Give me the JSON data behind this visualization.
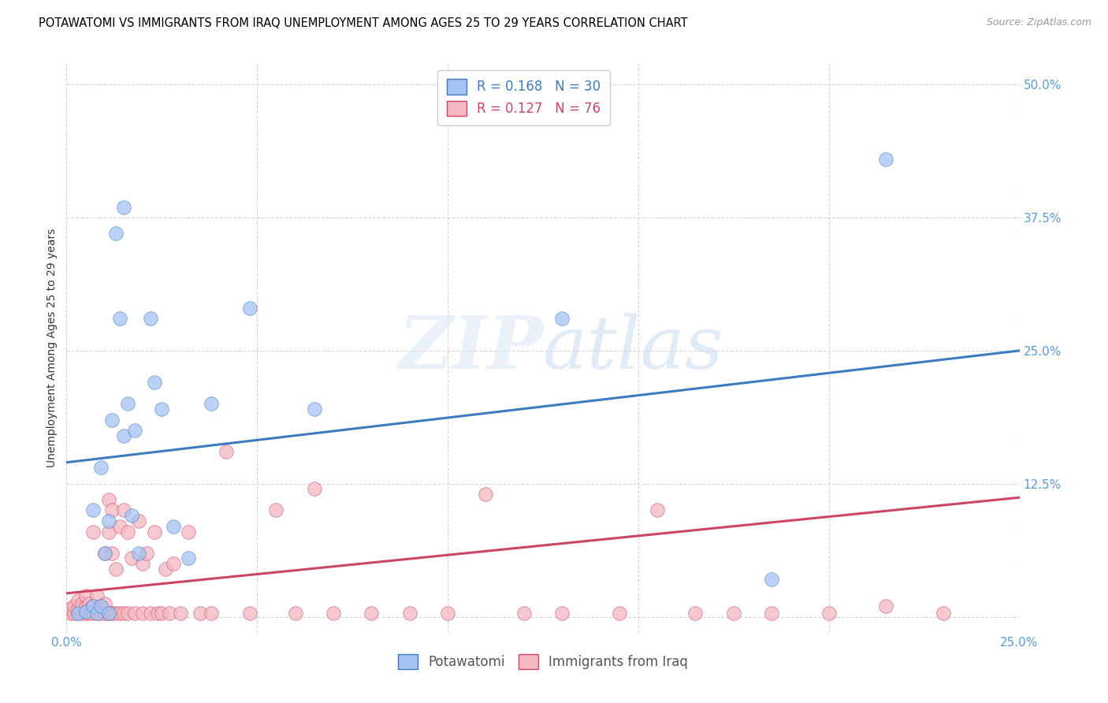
{
  "title": "POTAWATOMI VS IMMIGRANTS FROM IRAQ UNEMPLOYMENT AMONG AGES 25 TO 29 YEARS CORRELATION CHART",
  "source": "Source: ZipAtlas.com",
  "ylabel": "Unemployment Among Ages 25 to 29 years",
  "watermark_zip": "ZIP",
  "watermark_atlas": "atlas",
  "series1_label": "Potawatomi",
  "series2_label": "Immigrants from Iraq",
  "series1_color": "#a4c2f4",
  "series2_color": "#f4b8c1",
  "series1_line_color": "#3d7abf",
  "series2_line_color": "#cc4466",
  "series1_R": 0.168,
  "series1_N": 30,
  "series2_R": 0.127,
  "series2_N": 76,
  "blue_line_x0": 0.0,
  "blue_line_y0": 0.145,
  "blue_line_x1": 0.25,
  "blue_line_y1": 0.25,
  "pink_line_x0": 0.0,
  "pink_line_y0": 0.022,
  "pink_line_x1": 0.25,
  "pink_line_y1": 0.112,
  "xlim": [
    0.0,
    0.25
  ],
  "ylim": [
    -0.015,
    0.52
  ],
  "xticks": [
    0.0,
    0.05,
    0.1,
    0.15,
    0.2,
    0.25
  ],
  "yticks": [
    0.0,
    0.125,
    0.25,
    0.375,
    0.5
  ],
  "xticklabels": [
    "0.0%",
    "",
    "",
    "",
    "",
    "25.0%"
  ],
  "yticklabels": [
    "",
    "12.5%",
    "25.0%",
    "37.5%",
    "50.0%"
  ],
  "series1_x": [
    0.003,
    0.005,
    0.007,
    0.007,
    0.008,
    0.009,
    0.009,
    0.01,
    0.011,
    0.011,
    0.012,
    0.013,
    0.014,
    0.015,
    0.015,
    0.016,
    0.017,
    0.018,
    0.019,
    0.022,
    0.023,
    0.025,
    0.028,
    0.032,
    0.038,
    0.048,
    0.065,
    0.13,
    0.185,
    0.215
  ],
  "series1_y": [
    0.003,
    0.005,
    0.01,
    0.1,
    0.003,
    0.01,
    0.14,
    0.06,
    0.003,
    0.09,
    0.185,
    0.36,
    0.28,
    0.17,
    0.385,
    0.2,
    0.095,
    0.175,
    0.06,
    0.28,
    0.22,
    0.195,
    0.085,
    0.055,
    0.2,
    0.29,
    0.195,
    0.28,
    0.035,
    0.43
  ],
  "series2_x": [
    0.001,
    0.001,
    0.002,
    0.002,
    0.003,
    0.003,
    0.003,
    0.004,
    0.004,
    0.005,
    0.005,
    0.005,
    0.006,
    0.006,
    0.007,
    0.007,
    0.007,
    0.008,
    0.008,
    0.008,
    0.009,
    0.009,
    0.01,
    0.01,
    0.01,
    0.011,
    0.011,
    0.011,
    0.012,
    0.012,
    0.012,
    0.013,
    0.013,
    0.014,
    0.014,
    0.015,
    0.015,
    0.016,
    0.016,
    0.017,
    0.018,
    0.019,
    0.02,
    0.02,
    0.021,
    0.022,
    0.023,
    0.024,
    0.025,
    0.026,
    0.027,
    0.028,
    0.03,
    0.032,
    0.035,
    0.038,
    0.042,
    0.048,
    0.055,
    0.06,
    0.065,
    0.07,
    0.08,
    0.09,
    0.1,
    0.11,
    0.12,
    0.13,
    0.145,
    0.155,
    0.165,
    0.175,
    0.185,
    0.2,
    0.215,
    0.23
  ],
  "series2_y": [
    0.003,
    0.008,
    0.003,
    0.01,
    0.003,
    0.008,
    0.015,
    0.003,
    0.012,
    0.003,
    0.01,
    0.02,
    0.003,
    0.012,
    0.003,
    0.01,
    0.08,
    0.003,
    0.008,
    0.02,
    0.003,
    0.01,
    0.003,
    0.012,
    0.06,
    0.003,
    0.08,
    0.11,
    0.003,
    0.06,
    0.1,
    0.003,
    0.045,
    0.003,
    0.085,
    0.003,
    0.1,
    0.003,
    0.08,
    0.055,
    0.003,
    0.09,
    0.003,
    0.05,
    0.06,
    0.003,
    0.08,
    0.003,
    0.003,
    0.045,
    0.003,
    0.05,
    0.003,
    0.08,
    0.003,
    0.003,
    0.155,
    0.003,
    0.1,
    0.003,
    0.12,
    0.003,
    0.003,
    0.003,
    0.003,
    0.115,
    0.003,
    0.003,
    0.003,
    0.1,
    0.003,
    0.003,
    0.003,
    0.003,
    0.01,
    0.003
  ],
  "title_fontsize": 10.5,
  "source_fontsize": 9,
  "axis_label_fontsize": 10,
  "tick_fontsize": 11,
  "legend_fontsize": 12
}
